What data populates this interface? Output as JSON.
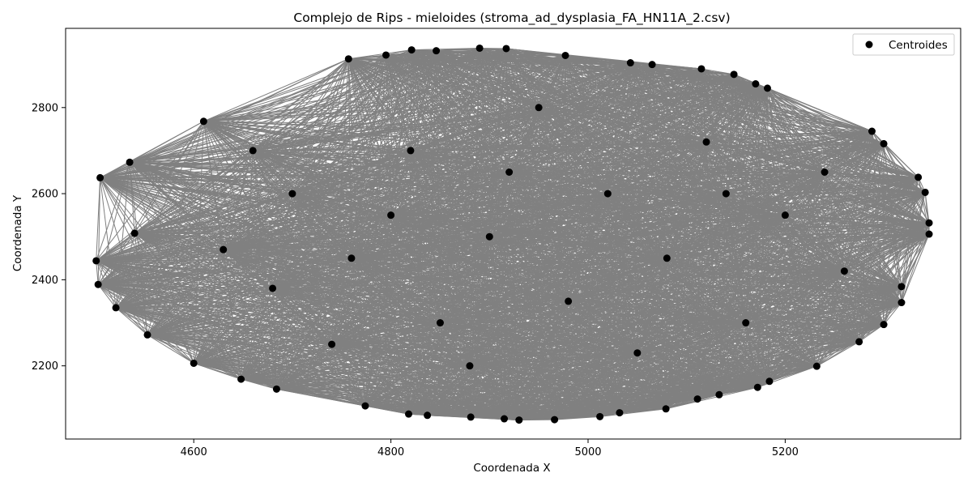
{
  "chart_data": {
    "type": "scatter",
    "title": "Complejo de Rips - mieloides (stroma_ad_dysplasia_FA_HN11A_2.csv)",
    "xlabel": "Coordenada X",
    "ylabel": "Coordenada Y",
    "xlim": [
      4470,
      5378
    ],
    "ylim": [
      2030,
      2984
    ],
    "xticks": [
      4600,
      4800,
      5000,
      5200
    ],
    "yticks": [
      2200,
      2400,
      2600,
      2800
    ],
    "grid": false,
    "legend": {
      "position": "top-right",
      "entries": [
        "Centroides"
      ]
    },
    "point_color": "#000000",
    "edge_color": "#808080",
    "series": [
      {
        "name": "Centroides",
        "points": [
          [
            4505,
            2637
          ],
          [
            4535,
            2673
          ],
          [
            4610,
            2768
          ],
          [
            4757,
            2913
          ],
          [
            4795,
            2922
          ],
          [
            4821,
            2934
          ],
          [
            4846,
            2932
          ],
          [
            4890,
            2938
          ],
          [
            4917,
            2937
          ],
          [
            4977,
            2921
          ],
          [
            5043,
            2904
          ],
          [
            5065,
            2900
          ],
          [
            5115,
            2890
          ],
          [
            5148,
            2877
          ],
          [
            5170,
            2855
          ],
          [
            5182,
            2845
          ],
          [
            5288,
            2745
          ],
          [
            5300,
            2716
          ],
          [
            5335,
            2638
          ],
          [
            5342,
            2603
          ],
          [
            5346,
            2532
          ],
          [
            5346,
            2506
          ],
          [
            5318,
            2384
          ],
          [
            5318,
            2347
          ],
          [
            5300,
            2296
          ],
          [
            5275,
            2256
          ],
          [
            5232,
            2199
          ],
          [
            5184,
            2164
          ],
          [
            5172,
            2150
          ],
          [
            5133,
            2133
          ],
          [
            5111,
            2123
          ],
          [
            5079,
            2100
          ],
          [
            5032,
            2091
          ],
          [
            5012,
            2082
          ],
          [
            4966,
            2075
          ],
          [
            4930,
            2074
          ],
          [
            4915,
            2077
          ],
          [
            4881,
            2081
          ],
          [
            4837,
            2085
          ],
          [
            4818,
            2088
          ],
          [
            4774,
            2107
          ],
          [
            4684,
            2146
          ],
          [
            4648,
            2169
          ],
          [
            4600,
            2206
          ],
          [
            4553,
            2272
          ],
          [
            4521,
            2335
          ],
          [
            4503,
            2389
          ],
          [
            4501,
            2444
          ],
          [
            4540,
            2508
          ],
          [
            4630,
            2470
          ],
          [
            4700,
            2600
          ],
          [
            4760,
            2450
          ],
          [
            4820,
            2700
          ],
          [
            4850,
            2300
          ],
          [
            4900,
            2500
          ],
          [
            4950,
            2800
          ],
          [
            4980,
            2350
          ],
          [
            5020,
            2600
          ],
          [
            5080,
            2450
          ],
          [
            5120,
            2720
          ],
          [
            5160,
            2300
          ],
          [
            5200,
            2550
          ],
          [
            5240,
            2650
          ],
          [
            5260,
            2420
          ],
          [
            4680,
            2380
          ],
          [
            4740,
            2250
          ],
          [
            4880,
            2200
          ],
          [
            5050,
            2230
          ],
          [
            4920,
            2650
          ],
          [
            4800,
            2550
          ],
          [
            5140,
            2600
          ],
          [
            4660,
            2700
          ]
        ]
      }
    ]
  }
}
